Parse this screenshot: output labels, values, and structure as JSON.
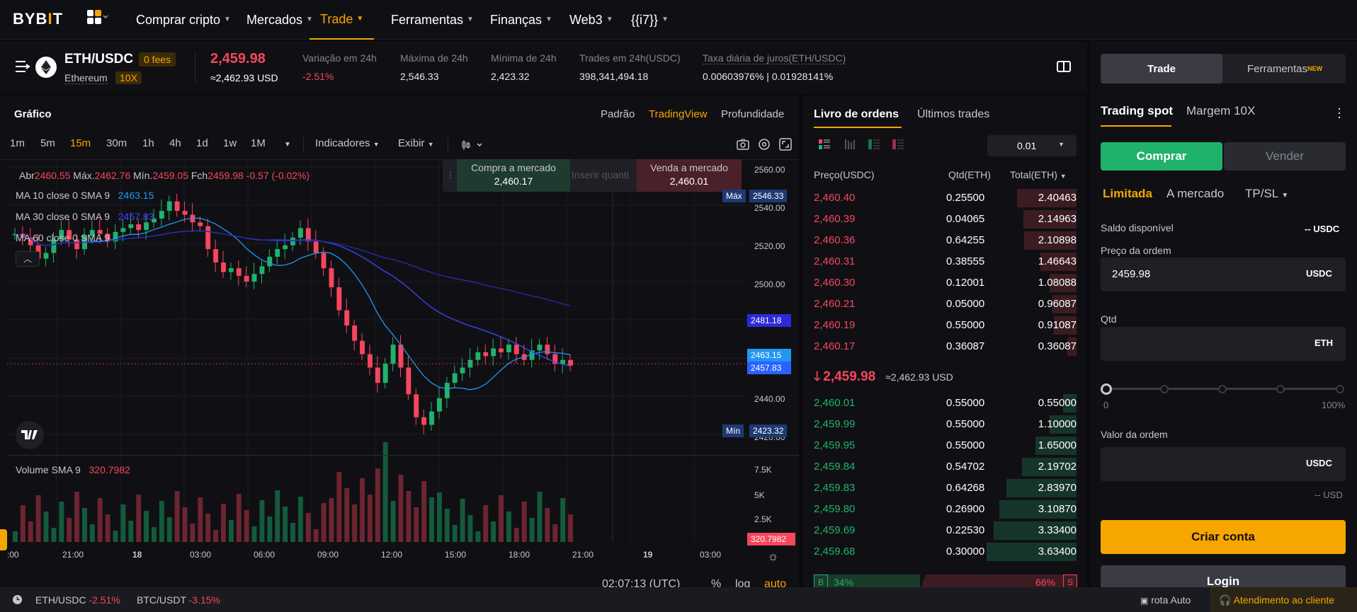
{
  "nav": {
    "logo_main": "BYB",
    "logo_accent": "I",
    "logo_end": "T",
    "items": [
      "Comprar cripto",
      "Mercados",
      "Trade",
      "Ferramentas",
      "Finanças",
      "Web3",
      "{{i7}}"
    ]
  },
  "ticker": {
    "pair": "ETH/USDC",
    "fees_badge": "0 fees",
    "coin_name": "Ethereum",
    "leverage": "10X",
    "price": "2,459.98",
    "price_usd": "≈2,462.93 USD",
    "stats": [
      {
        "label": "Variação em 24h",
        "value": "-2.51%"
      },
      {
        "label": "Máxima de 24h",
        "value": "2,546.33"
      },
      {
        "label": "Mínima de 24h",
        "value": "2,423.32"
      },
      {
        "label": "Trades em 24h(USDC)",
        "value": "398,341,494.18"
      },
      {
        "label": "Taxa diária de juros(ETH/USDC)",
        "value": "0.00603976% | 0.01928141%"
      }
    ]
  },
  "chart": {
    "title": "Gráfico",
    "views": [
      "Padrão",
      "TradingView",
      "Profundidade"
    ],
    "intervals": [
      "1m",
      "5m",
      "15m",
      "30m",
      "1h",
      "4h",
      "1d",
      "1w",
      "1M"
    ],
    "indicators_label": "Indicadores",
    "display_label": "Exibir",
    "ohlc": {
      "o_label": "Abr",
      "o": "2460.55",
      "h_label": "Máx.",
      "h": "2462.76",
      "l_label": "Mín.",
      "l": "2459.05",
      "c_label": "Fch",
      "c": "2459.98",
      "chg": "-0.57 (-0.02%)"
    },
    "ma": [
      {
        "label": "MA 10 close 0 SMA 9",
        "value": "2463.15"
      },
      {
        "label": "MA 30 close 0 SMA 9",
        "value": "2457.83"
      },
      {
        "label": "MA 60 close 0 SMA 9",
        "value": ""
      }
    ],
    "quick_trade": {
      "buy_label": "Compra a mercado",
      "buy_price": "2,460.17",
      "qty_placeholder": "Inserir quanti",
      "sell_label": "Venda a mercado",
      "sell_price": "2,460.01"
    },
    "y_ticks": [
      "2560.00",
      "2540.00",
      "2520.00",
      "2500.00",
      "2440.00",
      "2420.00"
    ],
    "tags": {
      "max_label": "Máx",
      "max": "2546.33",
      "mark1": "2481.18",
      "ma10": "2463.15",
      "ma30": "2457.83",
      "min_label": "Mín",
      "min": "2423.32"
    },
    "volume_label": "Volume SMA 9",
    "volume_value": "320.7982",
    "vol_ticks": [
      "7.5K",
      "5K",
      "2.5K"
    ],
    "x_ticks": [
      ":00",
      "21:00",
      "18",
      "03:00",
      "06:00",
      "09:00",
      "12:00",
      "15:00",
      "18:00",
      "21:00",
      "19",
      "03:00"
    ],
    "time": "02:07:13 (UTC)",
    "pct": "%",
    "log": "log",
    "auto": "auto"
  },
  "book": {
    "tabs": [
      "Livro de ordens",
      "Últimos trades"
    ],
    "precision": "0.01",
    "headers": [
      "Preço(USDC)",
      "Qtd(ETH)",
      "Total(ETH)"
    ],
    "asks": [
      [
        "2,460.40",
        "0.25500",
        "2.40463"
      ],
      [
        "2,460.39",
        "0.04065",
        "2.14963"
      ],
      [
        "2,460.36",
        "0.64255",
        "2.10898"
      ],
      [
        "2,460.31",
        "0.38555",
        "1.46643"
      ],
      [
        "2,460.30",
        "0.12001",
        "1.08088"
      ],
      [
        "2,460.21",
        "0.05000",
        "0.96087"
      ],
      [
        "2,460.19",
        "0.55000",
        "0.91087"
      ],
      [
        "2,460.17",
        "0.36087",
        "0.36087"
      ]
    ],
    "last_price": "2,459.98",
    "last_usd": "≈2,462.93 USD",
    "bids": [
      [
        "2,460.01",
        "0.55000",
        "0.55000"
      ],
      [
        "2,459.99",
        "0.55000",
        "1.10000"
      ],
      [
        "2,459.95",
        "0.55000",
        "1.65000"
      ],
      [
        "2,459.84",
        "0.54702",
        "2.19702"
      ],
      [
        "2,459.83",
        "0.64268",
        "2.83970"
      ],
      [
        "2,459.80",
        "0.26900",
        "3.10870"
      ],
      [
        "2,459.69",
        "0.22530",
        "3.33400"
      ],
      [
        "2,459.68",
        "0.30000",
        "3.63400"
      ]
    ],
    "buy_ratio_label": "B",
    "buy_ratio": "34%",
    "sell_ratio": "66%",
    "sell_ratio_label": "S"
  },
  "order": {
    "tab_trade": "Trade",
    "tab_tools": "Ferramentas",
    "tools_badge": "NEW",
    "mode_spot": "Trading spot",
    "mode_margin": "Margem 10X",
    "buy": "Comprar",
    "sell": "Vender",
    "types": [
      "Limitada",
      "A mercado",
      "TP/SL"
    ],
    "balance_label": "Saldo disponível",
    "balance_value": "-- USDC",
    "price_label": "Preço da ordem",
    "price_value": "2459.98",
    "price_unit": "USDC",
    "qty_label": "Qtd",
    "qty_unit": "ETH",
    "slider_min": "0",
    "slider_max": "100%",
    "slider_value": 0,
    "value_label": "Valor da ordem",
    "value_unit": "USDC",
    "value_usd": "-- USD",
    "create_account": "Criar conta",
    "login": "Login"
  },
  "footer": {
    "pairs": [
      {
        "pair": "ETH/USDC",
        "chg": "-2.51%"
      },
      {
        "pair": "BTC/USDT",
        "chg": "-3.15%"
      }
    ],
    "route": "rota Auto",
    "support": "Atendimento ao cliente"
  },
  "colors": {
    "accent": "#f7a600",
    "up": "#20b26c",
    "down": "#f6465d",
    "ma10": "#2196f3",
    "ma30": "#3949ff"
  }
}
